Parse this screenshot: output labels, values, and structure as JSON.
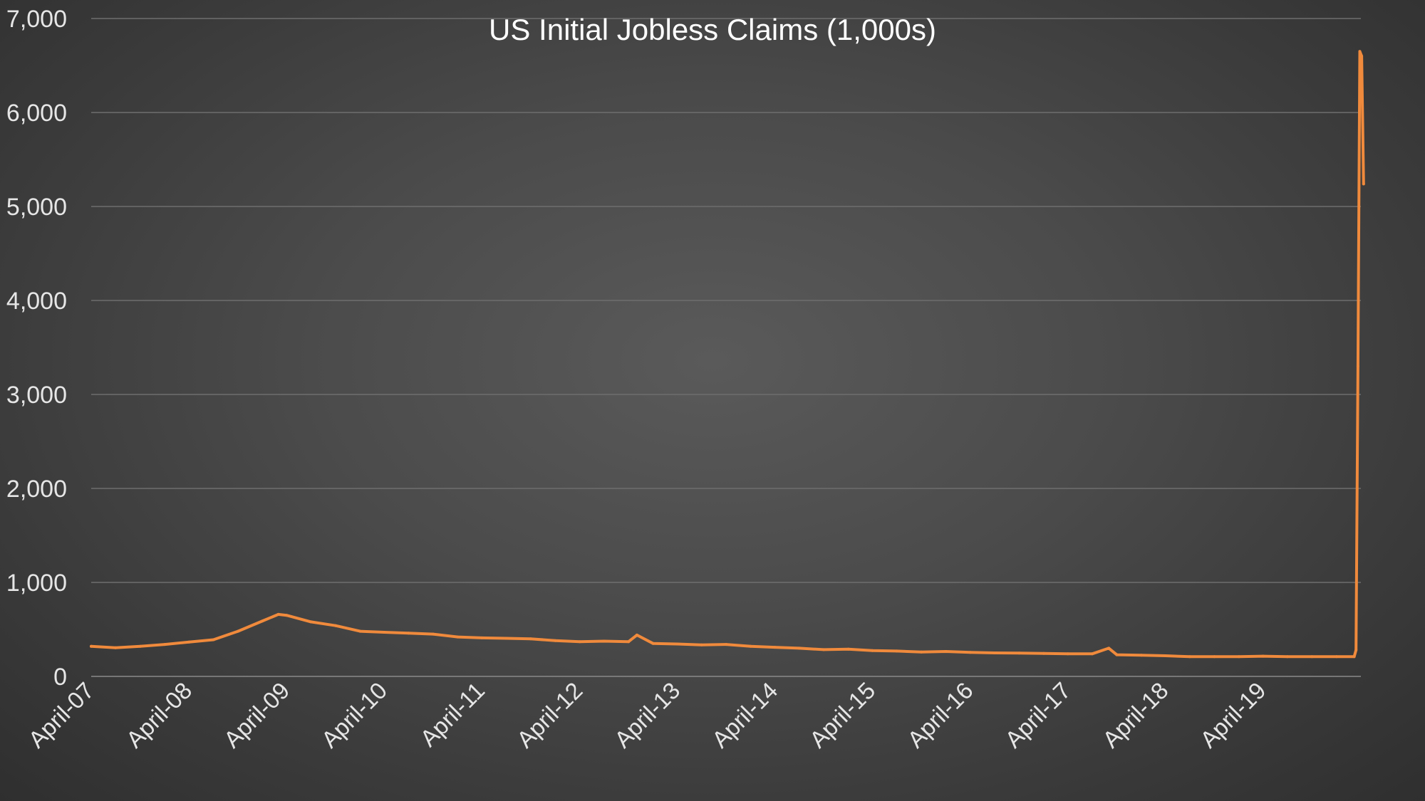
{
  "chart_data": {
    "type": "line",
    "title": "US Initial Jobless Claims (1,000s)",
    "xlabel": "",
    "ylabel": "",
    "ylim": [
      0,
      7000
    ],
    "y_ticks": [
      0,
      1000,
      2000,
      3000,
      4000,
      5000,
      6000,
      7000
    ],
    "y_tick_labels": [
      "0",
      "1,000",
      "2,000",
      "3,000",
      "4,000",
      "5,000",
      "6,000",
      "7,000"
    ],
    "x_range": [
      "2007-04",
      "2020-04"
    ],
    "x_ticks": [
      "2007-04",
      "2008-04",
      "2009-04",
      "2010-04",
      "2011-04",
      "2012-04",
      "2013-04",
      "2014-04",
      "2015-04",
      "2016-04",
      "2017-04",
      "2018-04",
      "2019-04"
    ],
    "x_tick_labels": [
      "April-07",
      "April-08",
      "April-09",
      "April-10",
      "April-11",
      "April-12",
      "April-13",
      "April-14",
      "April-15",
      "April-16",
      "April-17",
      "April-18",
      "April-19"
    ],
    "grid": true,
    "line_color": "#f08a3c",
    "series": [
      {
        "x": [
          "2007-04",
          "2007-07",
          "2007-10",
          "2008-01",
          "2008-04",
          "2008-07",
          "2008-10",
          "2009-01",
          "2009-03",
          "2009-04",
          "2009-07",
          "2009-10",
          "2010-01",
          "2010-04",
          "2010-07",
          "2010-10",
          "2011-01",
          "2011-04",
          "2011-07",
          "2011-10",
          "2012-01",
          "2012-04",
          "2012-07",
          "2012-10",
          "2012-11",
          "2013-01",
          "2013-04",
          "2013-07",
          "2013-10",
          "2014-01",
          "2014-04",
          "2014-07",
          "2014-10",
          "2015-01",
          "2015-04",
          "2015-07",
          "2015-10",
          "2016-01",
          "2016-04",
          "2016-07",
          "2016-10",
          "2017-01",
          "2017-04",
          "2017-07",
          "2017-09",
          "2017-10",
          "2018-01",
          "2018-04",
          "2018-07",
          "2018-10",
          "2019-01",
          "2019-04",
          "2019-07",
          "2019-10",
          "2020-01",
          "2020-03-07",
          "2020-03-14",
          "2020-03-21",
          "2020-03-28",
          "2020-04-04",
          "2020-04-11"
        ],
        "values": [
          320,
          305,
          320,
          340,
          365,
          390,
          480,
          590,
          660,
          650,
          580,
          540,
          480,
          470,
          460,
          450,
          420,
          410,
          405,
          400,
          380,
          370,
          375,
          370,
          440,
          350,
          345,
          335,
          340,
          320,
          310,
          300,
          285,
          290,
          275,
          270,
          260,
          265,
          255,
          250,
          248,
          245,
          240,
          240,
          300,
          230,
          225,
          220,
          210,
          210,
          210,
          215,
          210,
          210,
          210,
          210,
          280,
          3300,
          6650,
          6600,
          5240
        ]
      }
    ]
  }
}
